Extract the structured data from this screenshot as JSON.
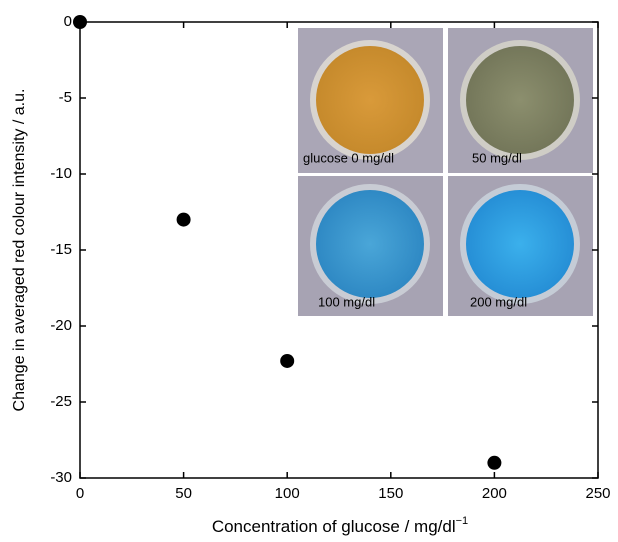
{
  "chart_data": {
    "type": "scatter",
    "x_label": "Concentration of glucose / mg/dl",
    "x_label_superscript": "−1",
    "y_label": "Change in averaged red colour intensity / a.u.",
    "x": [
      0,
      50,
      100,
      200
    ],
    "values": [
      0,
      -13,
      -22.3,
      -29
    ],
    "color": "#000000",
    "xlim": [
      0,
      250
    ],
    "xticks": [
      0,
      50,
      100,
      150,
      200,
      250
    ],
    "ylim": [
      -30,
      0
    ],
    "yticks": [
      0,
      -5,
      -10,
      -15,
      -20,
      -25,
      -30
    ],
    "inset_labels": [
      "glucose 0 mg/dl",
      "50 mg/dl",
      "100 mg/dl",
      "200 mg/dl"
    ]
  }
}
